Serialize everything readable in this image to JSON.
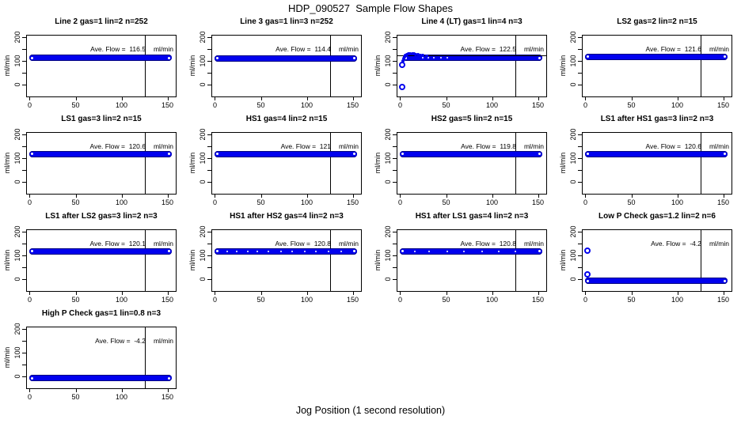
{
  "page": {
    "title": "HDP_090527  Sample Flow Shapes",
    "xlabel": "Jog Position (1 second resolution)"
  },
  "style": {
    "point_color": "#0101EE",
    "band_edge_color": "#000080",
    "axis_color": "#000000",
    "background": "#ffffff"
  },
  "chart_data": {
    "type": "scatter",
    "suptitle": "HDP_090527  Sample Flow Shapes",
    "xlabel": "Jog Position (1 second resolution)",
    "ylabel": "ml/min",
    "layout": {
      "rows": 4,
      "cols": 4,
      "count": 13
    },
    "x_ticks": [
      0,
      50,
      100,
      150
    ],
    "y_ticks_labeled": [
      0,
      100,
      200
    ],
    "y_ticks_all": [
      0,
      50,
      100,
      150,
      200
    ],
    "x_range": [
      -3,
      159
    ],
    "y_range": [
      -47,
      210
    ],
    "vline_x": 125,
    "grid": false,
    "marker": "open-circle-blue",
    "ave_label": "Ave. Flow =",
    "unit": "ml/min",
    "subplots": [
      {
        "title": "Line 2 gas=1 lin=2 n=252",
        "ave_flow": "116.5",
        "band_y": 116,
        "band_x": [
          0,
          152
        ]
      },
      {
        "title": "Line 3 gas=1 lin=3 n=252",
        "ave_flow": "114.4",
        "band_y": 114,
        "band_x": [
          0,
          152
        ]
      },
      {
        "title": "Line 4 (LT) gas=1 lin=4 n=3",
        "ave_flow": "122.5",
        "band_y": 116,
        "band_x": [
          3,
          152
        ],
        "hline_y": 127,
        "outliers": [
          [
            2,
            -8
          ],
          [
            2,
            86
          ]
        ],
        "extra_points": [
          [
            3,
            104
          ],
          [
            4,
            112
          ],
          [
            5,
            119
          ],
          [
            6,
            125
          ],
          [
            7,
            129
          ],
          [
            9,
            132
          ],
          [
            11,
            133
          ],
          [
            13,
            133
          ],
          [
            15,
            132
          ],
          [
            17,
            131
          ],
          [
            19,
            129
          ],
          [
            22,
            127
          ],
          [
            25,
            125
          ],
          [
            29,
            124
          ]
        ],
        "speckles": [
          0.14,
          0.18,
          0.22,
          0.27,
          0.32
        ]
      },
      {
        "title": "LS2 gas=2 lin=2 n=15",
        "ave_flow": "121.6",
        "band_y": 121,
        "band_x": [
          0,
          152
        ]
      },
      {
        "title": "LS1 gas=3 lin=2 n=15",
        "ave_flow": "120.6",
        "band_y": 120,
        "band_x": [
          0,
          152
        ]
      },
      {
        "title": "HS1 gas=4 lin=2 n=15",
        "ave_flow": "121",
        "band_y": 121,
        "band_x": [
          0,
          152
        ]
      },
      {
        "title": "HS2 gas=5 lin=2 n=15",
        "ave_flow": "119.8",
        "band_y": 120,
        "band_x": [
          0,
          152
        ]
      },
      {
        "title": "LS1 after HS1 gas=3 lin=2 n=3",
        "ave_flow": "120.6",
        "band_y": 120,
        "band_x": [
          0,
          152
        ]
      },
      {
        "title": "LS1 after LS2 gas=3 lin=2 n=3",
        "ave_flow": "120.1",
        "band_y": 120,
        "band_x": [
          0,
          152
        ]
      },
      {
        "title": "HS1 after HS2 gas=4 lin=2 n=3",
        "ave_flow": "120.8",
        "band_y": 120,
        "band_x": [
          0,
          152
        ],
        "speckles": [
          0.08,
          0.15,
          0.23,
          0.3,
          0.38,
          0.47,
          0.55,
          0.64,
          0.72,
          0.81,
          0.9
        ]
      },
      {
        "title": "HS1 after LS1 gas=4 lin=2 n=3",
        "ave_flow": "120.8",
        "band_y": 120,
        "band_x": [
          0,
          152
        ],
        "speckles": [
          0.1,
          0.2,
          0.33,
          0.45,
          0.58,
          0.7,
          0.82
        ]
      },
      {
        "title": "Low P Check gas=1.2 lin=2 n=6",
        "ave_flow": "-4.2",
        "band_y": -4,
        "band_x": [
          0,
          152
        ],
        "outliers": [
          [
            2,
            122
          ],
          [
            2,
            24
          ]
        ]
      },
      {
        "title": "High P Check gas=1 lin=0.8 n=3",
        "ave_flow": "-4.2",
        "band_y": -4,
        "band_x": [
          0,
          152
        ]
      }
    ]
  }
}
